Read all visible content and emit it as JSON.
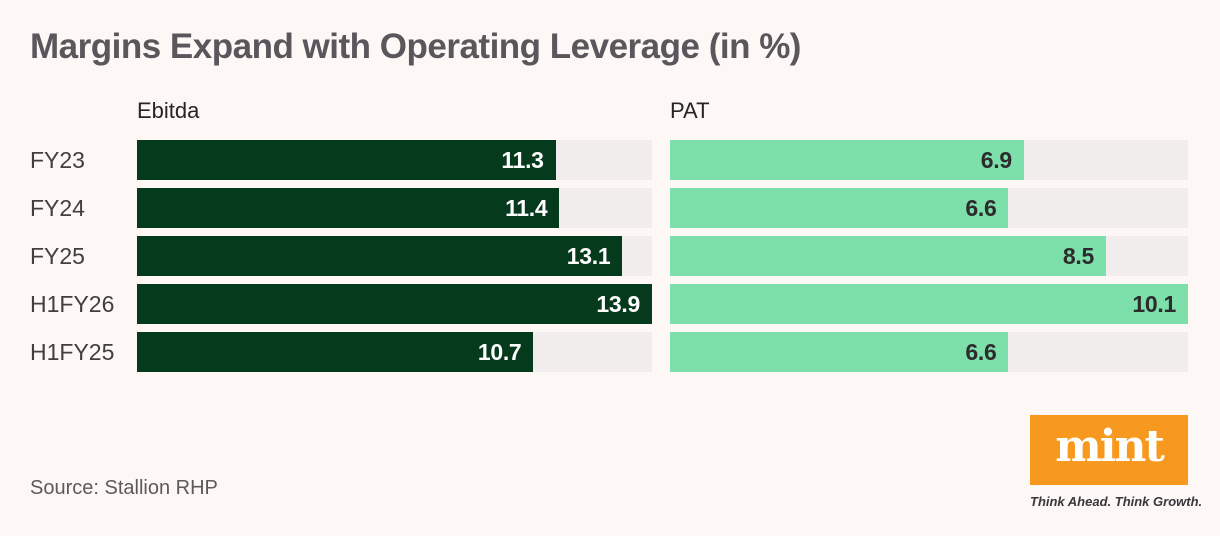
{
  "title": "Margins Expand with Operating Leverage (in %)",
  "source_note": "Source: Stallion RHP",
  "logo": {
    "text": "mint",
    "tagline": "Think Ahead. Think Growth.",
    "box_color": "#f8991f",
    "text_color": "#ffffff"
  },
  "colors": {
    "background": "#fdf7f6",
    "track": "#f1edec",
    "ebitda_fill": "#053a1d",
    "ebitda_label": "#ffffff",
    "pat_fill": "#7de0ab",
    "pat_label": "#2d2b2c",
    "title_text": "#59565c"
  },
  "chart_data": {
    "type": "bar",
    "orientation": "horizontal",
    "title": "Margins Expand with Operating Leverage (in %)",
    "categories": [
      "FY23",
      "FY24",
      "FY25",
      "H1FY26",
      "H1FY25"
    ],
    "series": [
      {
        "name": "Ebitda",
        "values": [
          11.3,
          11.4,
          13.1,
          13.9,
          10.7
        ],
        "axis_max": 13.9,
        "color": "#053a1d",
        "value_label_color": "#ffffff"
      },
      {
        "name": "PAT",
        "values": [
          6.9,
          6.6,
          8.5,
          10.1,
          6.6
        ],
        "axis_max": 10.1,
        "color": "#7de0ab",
        "value_label_color": "#2d2b2c"
      }
    ],
    "value_labels": "inside-end",
    "grid": false,
    "legend_position": "column-headers"
  }
}
